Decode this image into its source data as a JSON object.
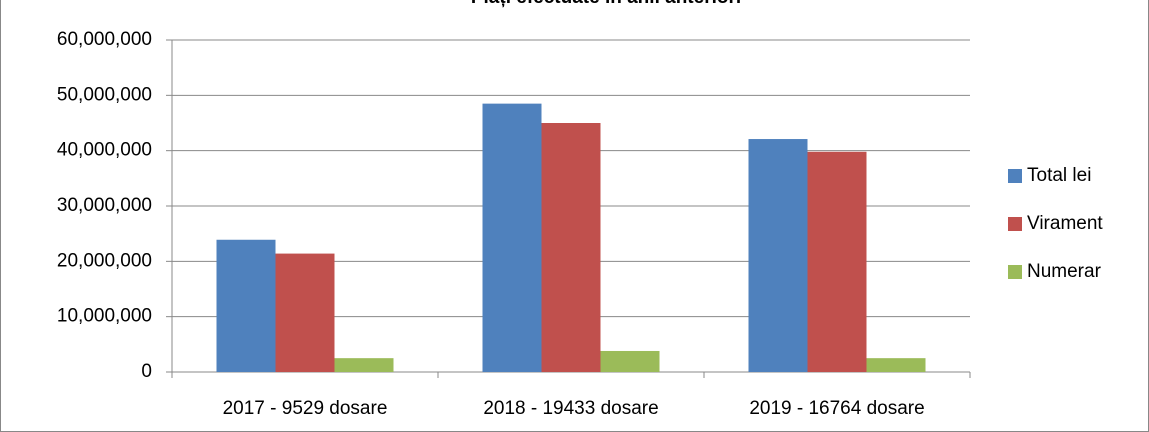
{
  "chart_data": {
    "type": "bar",
    "title": "Plăți efectuate în anii anteriori",
    "categories": [
      "2017 - 9529 dosare",
      "2018 - 19433 dosare",
      "2019 - 16764 dosare"
    ],
    "series": [
      {
        "name": "Total lei",
        "color": "#4f81bd",
        "values": [
          23900000,
          48500000,
          42100000
        ]
      },
      {
        "name": "Virament",
        "color": "#c0504d",
        "values": [
          21400000,
          45000000,
          39800000
        ]
      },
      {
        "name": "Numerar",
        "color": "#9bbb59",
        "values": [
          2500000,
          3800000,
          2500000
        ]
      }
    ],
    "ylim": [
      0,
      60000000
    ],
    "yticks": [
      0,
      {
        "value": 10000000,
        "label": "10,000,000"
      },
      {
        "value": 20000000,
        "label": "20,000,000"
      },
      {
        "value": 30000000,
        "label": "30,000,000"
      },
      {
        "value": 40000000,
        "label": "40,000,000"
      },
      {
        "value": 50000000,
        "label": "50,000,000"
      },
      {
        "value": 60000000,
        "label": "60,000,000"
      }
    ],
    "grid": true,
    "legend": "right"
  }
}
